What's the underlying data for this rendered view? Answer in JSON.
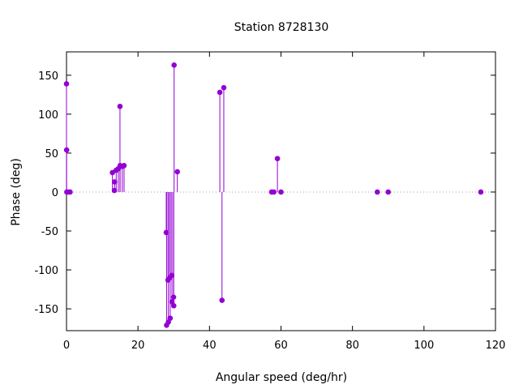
{
  "chart_data": {
    "type": "scatter",
    "style": "impulses-with-points",
    "title": "Station 8728130",
    "xlabel": "Angular speed (deg/hr)",
    "ylabel": "Phase (deg)",
    "xlim": [
      0,
      120
    ],
    "ylim": [
      -178,
      180
    ],
    "xticks": [
      0,
      20,
      40,
      60,
      80,
      100,
      120
    ],
    "yticks": [
      -150,
      -100,
      -50,
      0,
      50,
      100,
      150
    ],
    "zero_line": true,
    "grid": false,
    "legend": "none",
    "color": "#9400d3",
    "series": [
      {
        "x": [
          0.0,
          0.04,
          0.08,
          0.5,
          1.0,
          12.85,
          13.4,
          13.45,
          13.9,
          14.5,
          14.96,
          15.0,
          15.6,
          16.1,
          27.9,
          28.0,
          28.4,
          28.5,
          28.9,
          29.0,
          29.45,
          29.5,
          29.95,
          30.0,
          30.1,
          31.0,
          42.9,
          43.5,
          44.0,
          57.4,
          58.0,
          59.0,
          60.0,
          86.95,
          90.0,
          115.9
        ],
        "y": [
          139,
          54,
          0,
          0,
          0,
          25,
          2,
          13,
          28,
          30,
          110,
          34,
          33,
          34,
          -52,
          -171,
          -113,
          -167,
          -110,
          -162,
          -107,
          -141,
          -135,
          -146,
          163,
          26,
          128,
          -139,
          134,
          0,
          0,
          43,
          0,
          0,
          0,
          0
        ]
      }
    ]
  }
}
